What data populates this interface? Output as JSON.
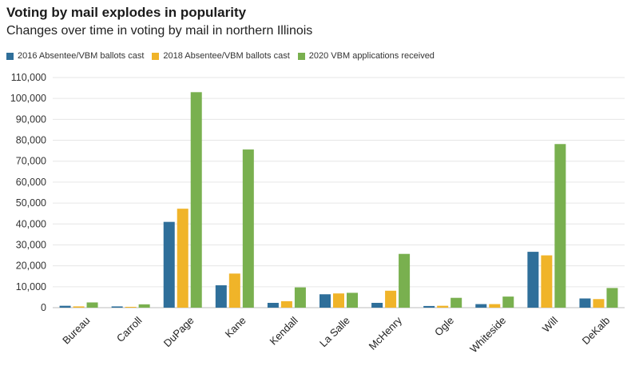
{
  "chart_data": {
    "type": "bar",
    "title": "Voting by mail explodes in popularity",
    "subtitle": "Changes over time in voting by mail in northern Illinois",
    "xlabel": "",
    "ylabel": "",
    "ylim": [
      0,
      110000
    ],
    "yticks": [
      0,
      10000,
      20000,
      30000,
      40000,
      50000,
      60000,
      70000,
      80000,
      90000,
      100000,
      110000
    ],
    "ytick_labels": [
      "0",
      "10,000",
      "20,000",
      "30,000",
      "40,000",
      "50,000",
      "60,000",
      "70,000",
      "80,000",
      "90,000",
      "100,000",
      "110,000"
    ],
    "grid": true,
    "legend_position": "top-left",
    "categories": [
      "Bureau",
      "Carroll",
      "DuPage",
      "Kane",
      "Kendall",
      "La Salle",
      "McHenry",
      "Ogle",
      "Whiteside",
      "Will",
      "DeKalb"
    ],
    "series": [
      {
        "name": "2016 Absentee/VBM ballots cast",
        "color": "#2f6f9a",
        "values": [
          900,
          600,
          41000,
          10700,
          2300,
          6400,
          2300,
          800,
          1700,
          26700,
          4400
        ]
      },
      {
        "name": "2018 Absentee/VBM ballots cast",
        "color": "#f0b429",
        "values": [
          600,
          400,
          47300,
          16300,
          3100,
          6800,
          8100,
          900,
          1700,
          25000,
          4100
        ]
      },
      {
        "name": "2020 VBM applications received",
        "color": "#79b04f",
        "values": [
          2500,
          1600,
          103000,
          75600,
          9700,
          7100,
          25700,
          4700,
          5300,
          78200,
          9400
        ]
      }
    ]
  }
}
